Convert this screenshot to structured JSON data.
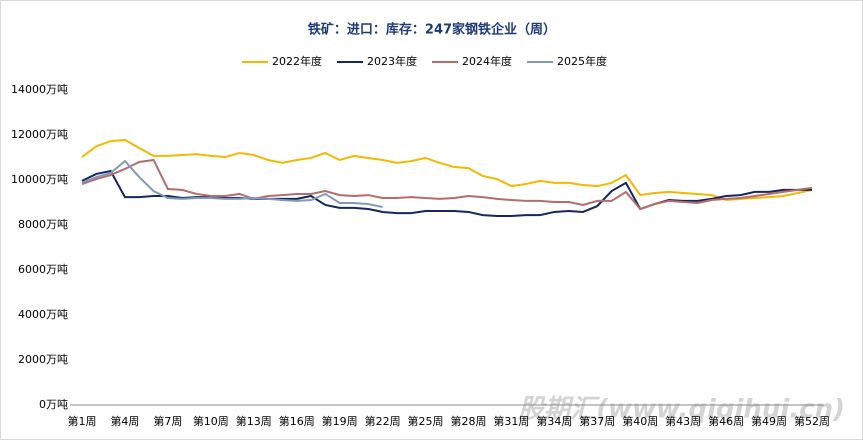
{
  "chart_data": {
    "type": "line",
    "title": "铁矿：进口：库存：247家钢铁企业（周）",
    "watermark": "股期汇(www.qiqihui.cn)",
    "categories": [
      "第1周",
      null,
      null,
      "第4周",
      null,
      null,
      "第7周",
      null,
      null,
      "第10周",
      null,
      null,
      "第13周",
      null,
      null,
      "第16周",
      null,
      null,
      "第19周",
      null,
      null,
      "第22周",
      null,
      null,
      "第25周",
      null,
      null,
      "第28周",
      null,
      null,
      "第31周",
      null,
      null,
      "第34周",
      null,
      null,
      "第37周",
      null,
      null,
      "第40周",
      null,
      null,
      "第43周",
      null,
      null,
      "第46周",
      null,
      null,
      "第49周",
      null,
      null,
      "第52周"
    ],
    "ylim": [
      0,
      14000
    ],
    "yticks": [
      {
        "value": 0,
        "label": "0万吨"
      },
      {
        "value": 2000,
        "label": "2000万吨"
      },
      {
        "value": 4000,
        "label": "4000万吨"
      },
      {
        "value": 6000,
        "label": "6000万吨"
      },
      {
        "value": 8000,
        "label": "8000万吨"
      },
      {
        "value": 10000,
        "label": "10000万吨"
      },
      {
        "value": 12000,
        "label": "12000万吨"
      },
      {
        "value": 14000,
        "label": "14000万吨"
      }
    ],
    "legend": "top",
    "series": [
      {
        "name": "2022年度",
        "color": "#f5b800",
        "values": [
          11020,
          11500,
          11730,
          11780,
          11420,
          11070,
          11070,
          11110,
          11150,
          11070,
          11020,
          11200,
          11110,
          10890,
          10760,
          10890,
          10980,
          11200,
          10890,
          11070,
          10980,
          10890,
          10760,
          10840,
          10980,
          10760,
          10580,
          10530,
          10180,
          10040,
          9730,
          9820,
          9960,
          9870,
          9870,
          9780,
          9730,
          9870,
          10220,
          9330,
          9420,
          9470,
          9420,
          9380,
          9330,
          9110,
          9160,
          9200,
          9240,
          9290,
          9420,
          9560
        ]
      },
      {
        "name": "2023年度",
        "color": "#14285f",
        "values": [
          9960,
          10270,
          10400,
          9240,
          9240,
          9290,
          9290,
          9200,
          9240,
          9240,
          9200,
          9200,
          9160,
          9160,
          9160,
          9160,
          9290,
          8890,
          8760,
          8760,
          8710,
          8580,
          8530,
          8530,
          8620,
          8620,
          8620,
          8580,
          8440,
          8400,
          8400,
          8440,
          8440,
          8580,
          8620,
          8580,
          8840,
          9510,
          9870,
          8710,
          8930,
          9110,
          9070,
          9070,
          9160,
          9290,
          9330,
          9470,
          9470,
          9560,
          9560,
          9560
        ]
      },
      {
        "name": "2024年度",
        "color": "#b86b6b",
        "values": [
          9820,
          10040,
          10220,
          10490,
          10800,
          10890,
          9600,
          9560,
          9380,
          9290,
          9290,
          9380,
          9160,
          9290,
          9330,
          9380,
          9380,
          9510,
          9330,
          9290,
          9330,
          9200,
          9200,
          9240,
          9200,
          9160,
          9200,
          9290,
          9240,
          9160,
          9110,
          9070,
          9070,
          9020,
          9020,
          8890,
          9070,
          9070,
          9470,
          8710,
          8930,
          9070,
          9020,
          8980,
          9110,
          9160,
          9200,
          9290,
          9380,
          9470,
          9560,
          9650
        ]
      },
      {
        "name": "2025年度",
        "color": "#8099bb",
        "values": [
          9870,
          10130,
          10310,
          10840,
          10130,
          9510,
          9200,
          9160,
          9200,
          9200,
          9160,
          9160,
          9200,
          9160,
          9110,
          9070,
          9110,
          9380,
          8980,
          8980,
          8930,
          8800,
          null,
          null,
          null,
          null,
          null,
          null,
          null,
          null,
          null,
          null,
          null,
          null,
          null,
          null,
          null,
          null,
          null,
          null,
          null,
          null,
          null,
          null,
          null,
          null,
          null,
          null,
          null,
          null,
          null,
          null
        ]
      }
    ]
  }
}
